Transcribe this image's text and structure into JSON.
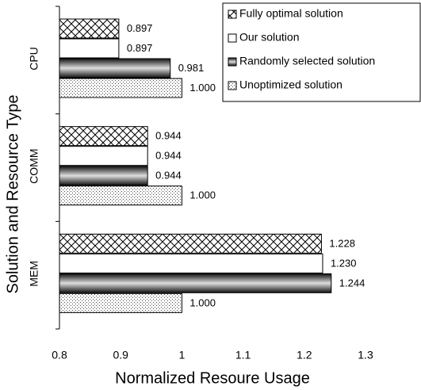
{
  "chart_data": {
    "type": "hbar",
    "categories": [
      "CPU",
      "COMM",
      "MEM"
    ],
    "series": [
      {
        "name": "Fully optimal solution",
        "pattern": "crosshatch",
        "values": [
          0.897,
          0.944,
          1.228
        ],
        "value_labels": [
          "0.897",
          "0.944",
          "1.228"
        ]
      },
      {
        "name": "Our solution",
        "pattern": "white",
        "values": [
          0.897,
          0.944,
          1.23
        ],
        "value_labels": [
          "0.897",
          "0.944",
          "1.230"
        ]
      },
      {
        "name": "Randomly selected solution",
        "pattern": "metallic",
        "values": [
          0.981,
          0.944,
          1.244
        ],
        "value_labels": [
          "0.981",
          "0.944",
          "1.244"
        ]
      },
      {
        "name": "Unoptimized solution",
        "pattern": "dots",
        "values": [
          1,
          1,
          1
        ],
        "value_labels": [
          "1.000",
          "1.000",
          "1.000"
        ]
      }
    ],
    "xlim": [
      0.8,
      1.3
    ],
    "xticks": [
      0.8,
      0.9,
      1,
      1.1,
      1.2,
      1.3
    ],
    "xlabel": "Normalized Resoure Usage",
    "ylabel": "Solution and Resource Type",
    "legend": "top-right"
  }
}
